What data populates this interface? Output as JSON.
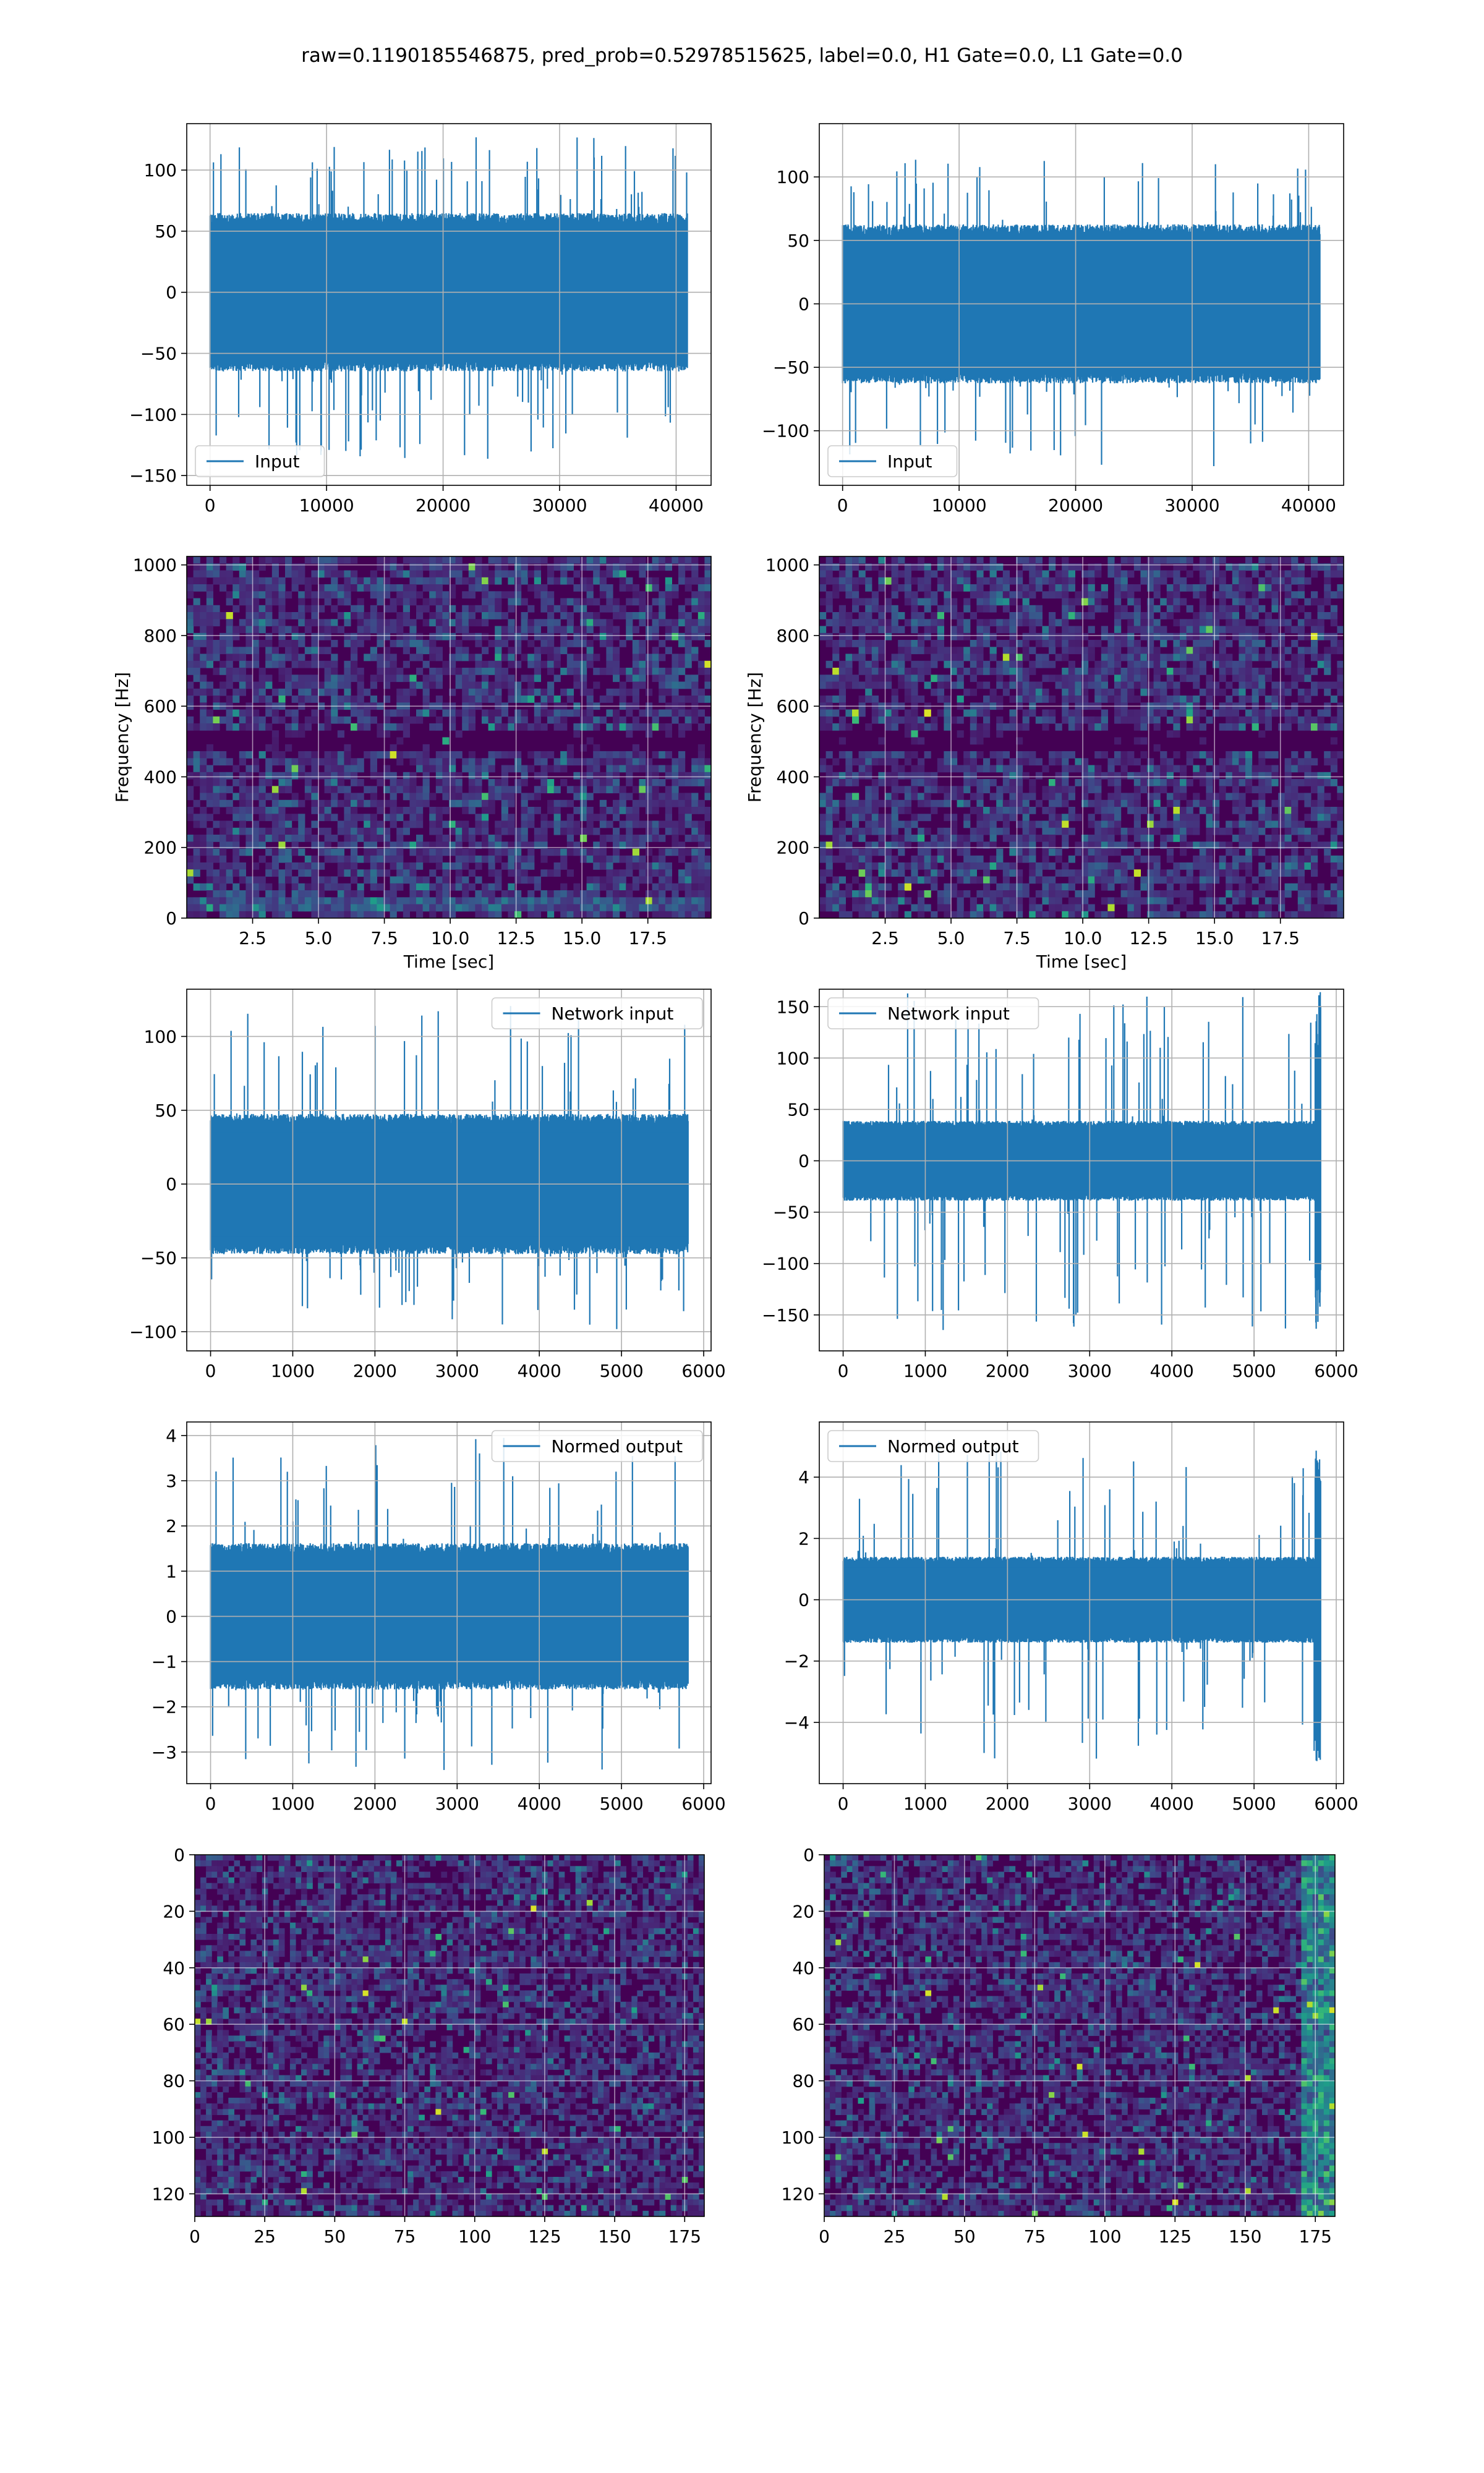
{
  "figure": {
    "suptitle": "raw=0.1190185546875, pred_prob=0.52978515625, label=0.0, H1 Gate=0.0, L1 Gate=0.0",
    "colors": {
      "line": "#1f77b4",
      "grid": "#b0b0b0",
      "axes": "#000000"
    }
  },
  "chart_data": [
    {
      "id": "input-h1",
      "type": "line",
      "legend": {
        "label": "Input",
        "loc": "lower-left"
      },
      "xlim": [
        -2000,
        43000
      ],
      "ylim": [
        -158,
        138
      ],
      "xticks": [
        0,
        10000,
        20000,
        30000,
        40000
      ],
      "xtick_labels": [
        "0",
        "10000",
        "20000",
        "30000",
        "40000"
      ],
      "yticks": [
        -150,
        -100,
        -50,
        0,
        50,
        100
      ],
      "ytick_labels": [
        "−150",
        "−100",
        "−50",
        "0",
        "50",
        "100"
      ],
      "grid": true,
      "signal": {
        "n_samples": 40960,
        "x_start": 0,
        "x_end": 40960,
        "envelope_mean": 60,
        "peak_max": 127,
        "peak_min": -142
      }
    },
    {
      "id": "input-l1",
      "type": "line",
      "legend": {
        "label": "Input",
        "loc": "lower-left"
      },
      "xlim": [
        -2000,
        43000
      ],
      "ylim": [
        -143,
        142
      ],
      "xticks": [
        0,
        10000,
        20000,
        30000,
        40000
      ],
      "xtick_labels": [
        "0",
        "10000",
        "20000",
        "30000",
        "40000"
      ],
      "yticks": [
        -100,
        -50,
        0,
        50,
        100
      ],
      "ytick_labels": [
        "−100",
        "−50",
        "0",
        "50",
        "100"
      ],
      "grid": true,
      "signal": {
        "n_samples": 40960,
        "x_start": 0,
        "x_end": 40960,
        "envelope_mean": 58,
        "peak_max": 115,
        "peak_min": -128
      }
    },
    {
      "id": "spectrogram-h1",
      "type": "heatmap",
      "xlabel": "Time [sec]",
      "ylabel": "Frequency [Hz]",
      "xlim": [
        0.0,
        19.9
      ],
      "ylim": [
        0,
        1024
      ],
      "xticks": [
        2.5,
        5.0,
        7.5,
        10.0,
        12.5,
        15.0,
        17.5
      ],
      "xtick_labels": [
        "2.5",
        "5.0",
        "7.5",
        "10.0",
        "12.5",
        "15.0",
        "17.5"
      ],
      "yticks": [
        0,
        200,
        400,
        600,
        800,
        1000
      ],
      "ytick_labels": [
        "0",
        "200",
        "400",
        "600",
        "800",
        "1000"
      ],
      "grid": true,
      "colormap": "viridis",
      "features": {
        "horizontal_band_hz": 500,
        "low_freq_line_hz": 45
      }
    },
    {
      "id": "spectrogram-l1",
      "type": "heatmap",
      "xlabel": "Time [sec]",
      "ylabel": "Frequency [Hz]",
      "xlim": [
        0.0,
        19.9
      ],
      "ylim": [
        0,
        1024
      ],
      "xticks": [
        2.5,
        5.0,
        7.5,
        10.0,
        12.5,
        15.0,
        17.5
      ],
      "xtick_labels": [
        "2.5",
        "5.0",
        "7.5",
        "10.0",
        "12.5",
        "15.0",
        "17.5"
      ],
      "yticks": [
        0,
        200,
        400,
        600,
        800,
        1000
      ],
      "ytick_labels": [
        "0",
        "200",
        "400",
        "600",
        "800",
        "1000"
      ],
      "grid": true,
      "colormap": "viridis",
      "features": {
        "horizontal_band_hz": 500
      }
    },
    {
      "id": "network-input-h1",
      "type": "line",
      "legend": {
        "label": "Network input",
        "loc": "upper-right"
      },
      "xlim": [
        -290,
        6090
      ],
      "ylim": [
        -113,
        132
      ],
      "xticks": [
        0,
        1000,
        2000,
        3000,
        4000,
        5000,
        6000
      ],
      "xtick_labels": [
        "0",
        "1000",
        "2000",
        "3000",
        "4000",
        "5000",
        "6000"
      ],
      "yticks": [
        -100,
        -50,
        0,
        50,
        100
      ],
      "ytick_labels": [
        "−100",
        "−50",
        "0",
        "50",
        "100"
      ],
      "grid": true,
      "signal": {
        "n_samples": 5810,
        "x_start": 0,
        "x_end": 5810,
        "envelope_mean": 44,
        "peak_max": 121,
        "peak_min": -101
      }
    },
    {
      "id": "network-input-l1",
      "type": "line",
      "legend": {
        "label": "Network input",
        "loc": "upper-left"
      },
      "xlim": [
        -290,
        6090
      ],
      "ylim": [
        -185,
        167
      ],
      "xticks": [
        0,
        1000,
        2000,
        3000,
        4000,
        5000,
        6000
      ],
      "xtick_labels": [
        "0",
        "1000",
        "2000",
        "3000",
        "4000",
        "5000",
        "6000"
      ],
      "yticks": [
        -150,
        -100,
        -50,
        0,
        50,
        100,
        150
      ],
      "ytick_labels": [
        "−150",
        "−100",
        "−50",
        "0",
        "50",
        "100",
        "150"
      ],
      "grid": true,
      "signal": {
        "n_samples": 5810,
        "x_start": 0,
        "x_end": 5810,
        "envelope_mean": 36,
        "peak_max": 165,
        "peak_min": -165,
        "edge_burst_from": 5740
      }
    },
    {
      "id": "normed-output-h1",
      "type": "line",
      "legend": {
        "label": "Normed output",
        "loc": "upper-right"
      },
      "xlim": [
        -290,
        6090
      ],
      "ylim": [
        -3.7,
        4.3
      ],
      "xticks": [
        0,
        1000,
        2000,
        3000,
        4000,
        5000,
        6000
      ],
      "xtick_labels": [
        "0",
        "1000",
        "2000",
        "3000",
        "4000",
        "5000",
        "6000"
      ],
      "yticks": [
        -3,
        -2,
        -1,
        0,
        1,
        2,
        3,
        4
      ],
      "ytick_labels": [
        "−3",
        "−2",
        "−1",
        "0",
        "1",
        "2",
        "3",
        "4"
      ],
      "grid": true,
      "signal": {
        "n_samples": 5810,
        "x_start": 0,
        "x_end": 5810,
        "envelope_mean": 1.5,
        "peak_max": 3.95,
        "peak_min": -3.4
      }
    },
    {
      "id": "normed-output-l1",
      "type": "line",
      "legend": {
        "label": "Normed output",
        "loc": "upper-left"
      },
      "xlim": [
        -290,
        6090
      ],
      "ylim": [
        -6.0,
        5.8
      ],
      "xticks": [
        0,
        1000,
        2000,
        3000,
        4000,
        5000,
        6000
      ],
      "xtick_labels": [
        "0",
        "1000",
        "2000",
        "3000",
        "4000",
        "5000",
        "6000"
      ],
      "yticks": [
        -4,
        -2,
        0,
        2,
        4
      ],
      "ytick_labels": [
        "−4",
        "−2",
        "0",
        "2",
        "4"
      ],
      "grid": true,
      "signal": {
        "n_samples": 5810,
        "x_start": 0,
        "x_end": 5810,
        "envelope_mean": 1.3,
        "peak_max": 5.3,
        "peak_min": -5.3,
        "edge_burst_from": 5740
      }
    },
    {
      "id": "feature-map-h1",
      "type": "heatmap",
      "xlim": [
        0,
        182
      ],
      "ylim": [
        128,
        0
      ],
      "xticks": [
        0,
        25,
        50,
        75,
        100,
        125,
        150,
        175
      ],
      "xtick_labels": [
        "0",
        "25",
        "50",
        "75",
        "100",
        "125",
        "150",
        "175"
      ],
      "yticks": [
        0,
        20,
        40,
        60,
        80,
        100,
        120
      ],
      "ytick_labels": [
        "0",
        "20",
        "40",
        "60",
        "80",
        "100",
        "120"
      ],
      "grid": true,
      "colormap": "viridis",
      "shape": [
        128,
        182
      ]
    },
    {
      "id": "feature-map-l1",
      "type": "heatmap",
      "xlim": [
        0,
        182
      ],
      "ylim": [
        128,
        0
      ],
      "xticks": [
        0,
        25,
        50,
        75,
        100,
        125,
        150,
        175
      ],
      "xtick_labels": [
        "0",
        "25",
        "50",
        "75",
        "100",
        "125",
        "150",
        "175"
      ],
      "yticks": [
        0,
        20,
        40,
        60,
        80,
        100,
        120
      ],
      "ytick_labels": [
        "0",
        "20",
        "40",
        "60",
        "80",
        "100",
        "120"
      ],
      "grid": true,
      "colormap": "viridis",
      "shape": [
        128,
        182
      ],
      "features": {
        "bright_columns_from": 170
      }
    }
  ]
}
